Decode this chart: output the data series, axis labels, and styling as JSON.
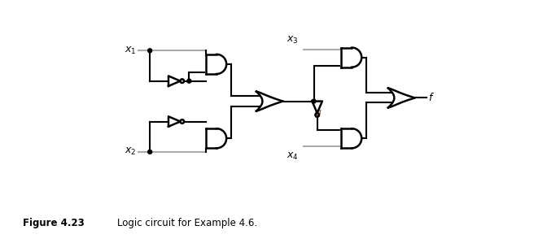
{
  "title": "",
  "figure_label": "Figure 4.23",
  "figure_caption": "Logic circuit for Example 4.6.",
  "bg_color": "#ffffff",
  "line_color": "#000000",
  "gate_fill": "#ffffff",
  "gate_lw": 1.8,
  "wire_lw": 1.5,
  "label_color": "#000000",
  "g_label_color": "#cc4400",
  "fig_width": 6.88,
  "fig_height": 2.99
}
